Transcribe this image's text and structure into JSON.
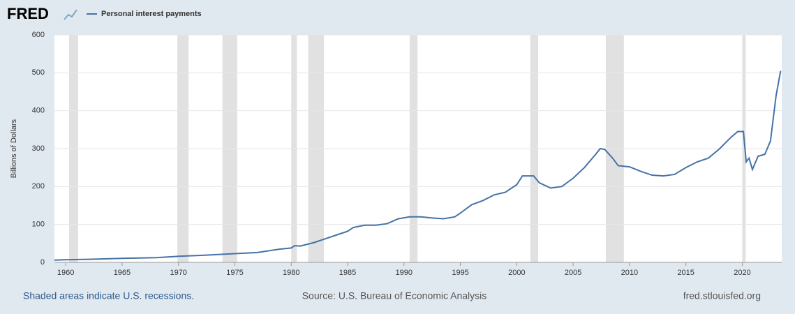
{
  "logo": "FRED",
  "chart_data": {
    "type": "line",
    "series": [
      {
        "name": "Personal interest payments",
        "color": "#4572a7",
        "x": [
          1959,
          1960,
          1962,
          1965,
          1968,
          1970,
          1972,
          1975,
          1977,
          1979,
          1980,
          1980.3,
          1980.8,
          1982,
          1983,
          1984,
          1985,
          1985.5,
          1986.5,
          1987.5,
          1988.5,
          1989.5,
          1990.5,
          1991.5,
          1992.5,
          1993.5,
          1994.5,
          1995,
          1996,
          1997,
          1998,
          1999,
          2000,
          2000.5,
          2001.5,
          2002,
          2003,
          2004,
          2005,
          2006,
          2007,
          2007.4,
          2007.8,
          2008.5,
          2009,
          2010,
          2011,
          2012,
          2013,
          2014,
          2015,
          2016,
          2017,
          2018,
          2019,
          2019.6,
          2020.1,
          2020.35,
          2020.6,
          2020.9,
          2021.4,
          2022,
          2022.5,
          2023,
          2023.4
        ],
        "values": [
          6,
          7,
          8,
          10.5,
          12.5,
          16,
          18.5,
          23,
          26,
          35,
          38,
          44,
          43,
          52,
          62,
          72,
          82,
          92,
          98,
          98,
          102,
          115,
          120,
          120,
          117,
          115,
          120,
          130,
          152,
          163,
          178,
          185,
          205,
          228,
          228,
          210,
          196,
          200,
          222,
          250,
          285,
          300,
          298,
          275,
          255,
          252,
          240,
          230,
          228,
          232,
          250,
          265,
          275,
          300,
          330,
          345,
          345,
          265,
          275,
          245,
          280,
          285,
          320,
          440,
          505
        ]
      }
    ],
    "recessions": [
      [
        1960.3,
        1961.1
      ],
      [
        1969.9,
        1970.9
      ],
      [
        1973.9,
        1975.2
      ],
      [
        1980.0,
        1980.5
      ],
      [
        1981.5,
        1982.9
      ],
      [
        1990.5,
        1991.2
      ],
      [
        2001.2,
        2001.9
      ],
      [
        2007.9,
        2009.5
      ],
      [
        2020.0,
        2020.3
      ]
    ],
    "y_label": "Billions of Dollars",
    "xlim": [
      1959,
      2023.5
    ],
    "xticks": [
      1960,
      1965,
      1970,
      1975,
      1980,
      1985,
      1990,
      1995,
      2000,
      2005,
      2010,
      2015,
      2020
    ],
    "ylim": [
      0,
      600
    ],
    "yticks": [
      0,
      100,
      200,
      300,
      400,
      500,
      600
    ],
    "grid": true,
    "note": "Shaded areas indicate U.S. recessions.",
    "source": "Source: U.S. Bureau of Economic Analysis",
    "site": "fred.stlouisfed.org"
  }
}
